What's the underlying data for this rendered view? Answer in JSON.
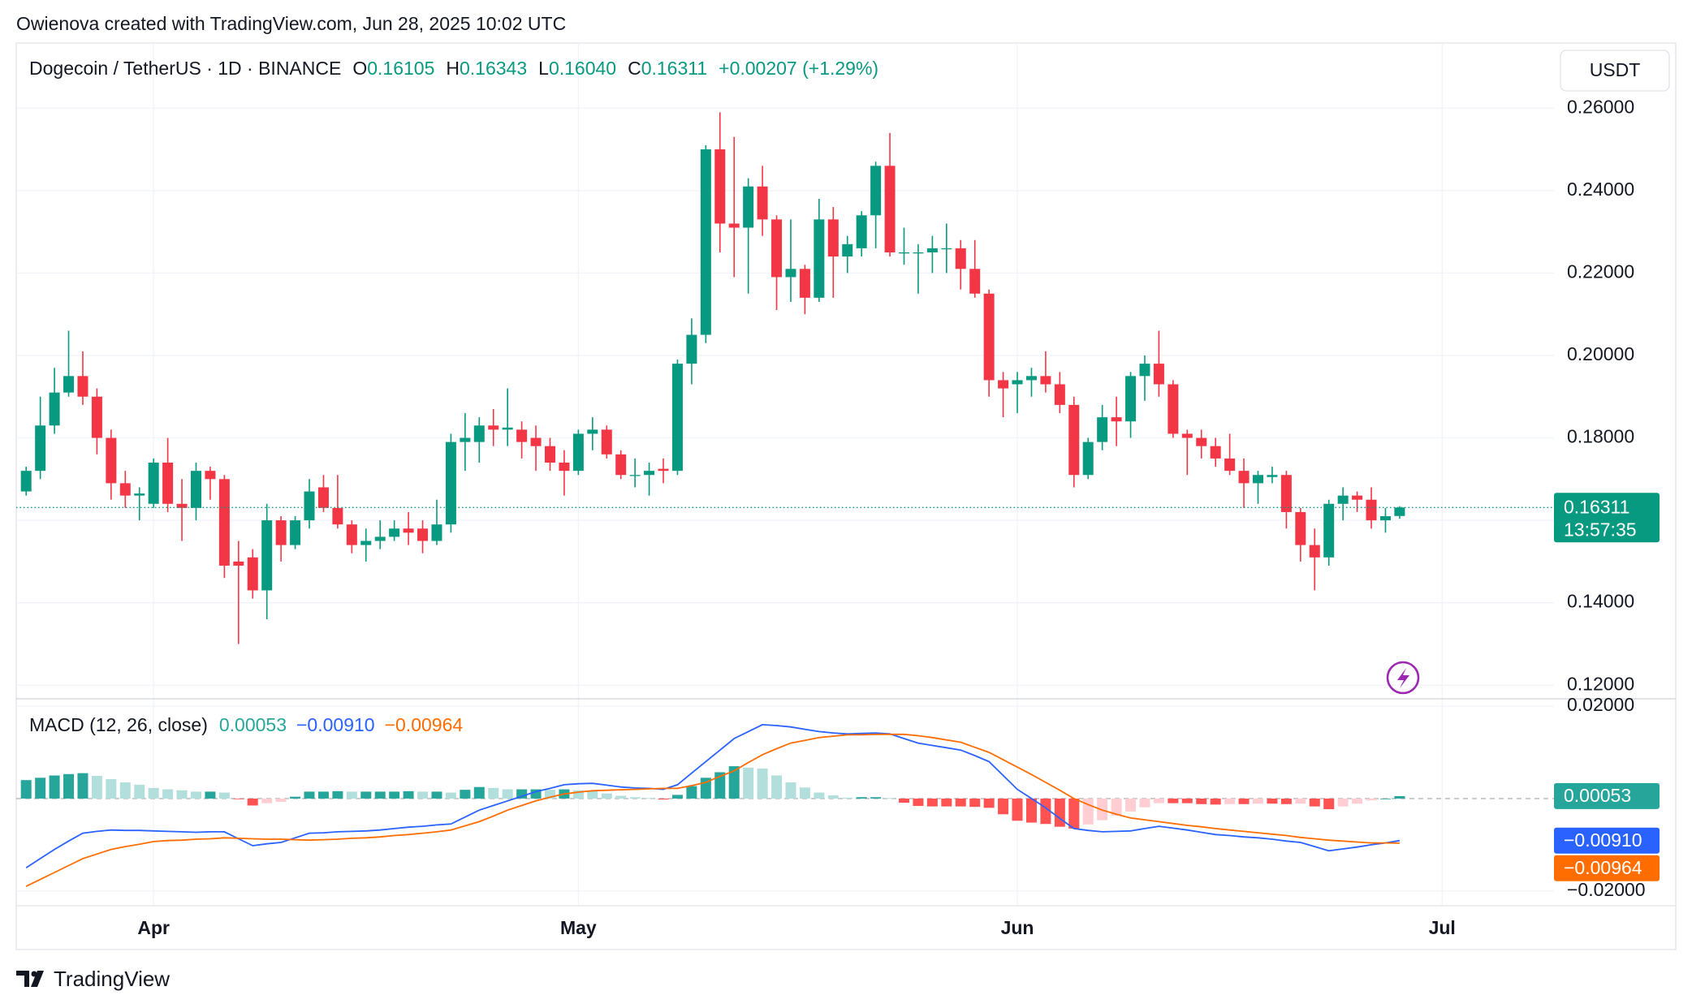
{
  "header": "Owienova created with TradingView.com, Jun 28, 2025 10:02 UTC",
  "footer": "TradingView",
  "chart_data": [
    {
      "type": "candlestick",
      "title": "Dogecoin / TetherUS · 1D · BINANCE",
      "currency": "USDT",
      "legend": {
        "letters": [
          "O",
          "H",
          "L",
          "C"
        ],
        "values": [
          "0.16105",
          "0.16343",
          "0.16040",
          "0.16311"
        ],
        "change": "+0.00207 (+1.29%)"
      },
      "countdown": "13:57:35",
      "up_color": "#089981",
      "down_color": "#f23645",
      "open": [
        0.167,
        0.172,
        0.183,
        0.191,
        0.195,
        0.19,
        0.18,
        0.169,
        0.166,
        0.164,
        0.174,
        0.164,
        0.163,
        0.172,
        0.17,
        0.15,
        0.151,
        0.143,
        0.16,
        0.154,
        0.16,
        0.168,
        0.163,
        0.159,
        0.154,
        0.155,
        0.156,
        0.158,
        0.158,
        0.155,
        0.159,
        0.179,
        0.179,
        0.183,
        0.182,
        0.182,
        0.18,
        0.178,
        0.174,
        0.172,
        0.181,
        0.182,
        0.176,
        0.171,
        0.171,
        0.1725,
        0.172,
        0.198,
        0.205,
        0.25,
        0.232,
        0.231,
        0.241,
        0.233,
        0.219,
        0.221,
        0.214,
        0.233,
        0.224,
        0.226,
        0.234,
        0.246,
        0.225,
        0.225,
        0.225,
        0.226,
        0.226,
        0.221,
        0.215,
        0.194,
        0.193,
        0.194,
        0.195,
        0.193,
        0.188,
        0.171,
        0.179,
        0.185,
        0.184,
        0.195,
        0.198,
        0.193,
        0.181,
        0.18,
        0.178,
        0.175,
        0.172,
        0.169,
        0.1705,
        0.171,
        0.162,
        0.154,
        0.151,
        0.164,
        0.166,
        0.165,
        0.16,
        0.16105
      ],
      "high": [
        0.173,
        0.19,
        0.197,
        0.206,
        0.201,
        0.192,
        0.182,
        0.172,
        0.168,
        0.175,
        0.18,
        0.17,
        0.174,
        0.173,
        0.171,
        0.155,
        0.153,
        0.164,
        0.161,
        0.161,
        0.17,
        0.171,
        0.171,
        0.16,
        0.158,
        0.16,
        0.16,
        0.162,
        0.16,
        0.165,
        0.181,
        0.186,
        0.185,
        0.187,
        0.192,
        0.184,
        0.183,
        0.18,
        0.177,
        0.182,
        0.185,
        0.183,
        0.177,
        0.175,
        0.174,
        0.175,
        0.199,
        0.209,
        0.251,
        0.259,
        0.253,
        0.243,
        0.246,
        0.234,
        0.233,
        0.222,
        0.238,
        0.236,
        0.229,
        0.235,
        0.247,
        0.254,
        0.231,
        0.227,
        0.229,
        0.232,
        0.228,
        0.228,
        0.216,
        0.196,
        0.196,
        0.197,
        0.201,
        0.196,
        0.19,
        0.18,
        0.188,
        0.19,
        0.196,
        0.2,
        0.206,
        0.194,
        0.182,
        0.182,
        0.18,
        0.181,
        0.175,
        0.172,
        0.173,
        0.172,
        0.163,
        0.158,
        0.165,
        0.168,
        0.167,
        0.168,
        0.163,
        0.16343
      ],
      "low": [
        0.166,
        0.17,
        0.181,
        0.19,
        0.188,
        0.176,
        0.165,
        0.163,
        0.16,
        0.163,
        0.162,
        0.155,
        0.16,
        0.165,
        0.146,
        0.13,
        0.141,
        0.136,
        0.15,
        0.153,
        0.158,
        0.162,
        0.158,
        0.152,
        0.15,
        0.153,
        0.155,
        0.154,
        0.152,
        0.154,
        0.157,
        0.172,
        0.174,
        0.178,
        0.178,
        0.175,
        0.172,
        0.172,
        0.166,
        0.171,
        0.177,
        0.175,
        0.17,
        0.168,
        0.166,
        0.169,
        0.171,
        0.193,
        0.203,
        0.225,
        0.219,
        0.215,
        0.229,
        0.211,
        0.213,
        0.21,
        0.213,
        0.214,
        0.22,
        0.224,
        0.226,
        0.224,
        0.222,
        0.215,
        0.22,
        0.22,
        0.216,
        0.214,
        0.19,
        0.185,
        0.186,
        0.19,
        0.191,
        0.186,
        0.168,
        0.17,
        0.177,
        0.178,
        0.18,
        0.189,
        0.19,
        0.18,
        0.171,
        0.175,
        0.173,
        0.171,
        0.163,
        0.164,
        0.169,
        0.158,
        0.15,
        0.143,
        0.149,
        0.16,
        0.162,
        0.158,
        0.157,
        0.1604
      ],
      "close": [
        0.172,
        0.183,
        0.191,
        0.195,
        0.19,
        0.18,
        0.169,
        0.166,
        0.1665,
        0.174,
        0.164,
        0.163,
        0.172,
        0.17,
        0.149,
        0.149,
        0.143,
        0.16,
        0.154,
        0.16,
        0.167,
        0.163,
        0.159,
        0.154,
        0.155,
        0.156,
        0.158,
        0.157,
        0.155,
        0.159,
        0.179,
        0.18,
        0.183,
        0.182,
        0.1825,
        0.179,
        0.178,
        0.174,
        0.172,
        0.181,
        0.182,
        0.176,
        0.171,
        0.171,
        0.172,
        0.172,
        0.198,
        0.205,
        0.25,
        0.232,
        0.231,
        0.241,
        0.233,
        0.219,
        0.221,
        0.214,
        0.233,
        0.224,
        0.227,
        0.234,
        0.246,
        0.225,
        0.225,
        0.225,
        0.226,
        0.226,
        0.221,
        0.215,
        0.194,
        0.192,
        0.194,
        0.195,
        0.193,
        0.188,
        0.171,
        0.179,
        0.185,
        0.184,
        0.195,
        0.198,
        0.193,
        0.181,
        0.18,
        0.178,
        0.175,
        0.172,
        0.169,
        0.171,
        0.171,
        0.162,
        0.154,
        0.151,
        0.164,
        0.166,
        0.165,
        0.16,
        0.161,
        0.16311
      ],
      "xlim": [
        -0.7,
        107.9
      ],
      "ylim": [
        0.1167,
        0.2758
      ],
      "yticks": [
        {
          "value": 0.12,
          "label": "0.12000"
        },
        {
          "value": 0.14,
          "label": "0.14000"
        },
        {
          "value": 0.16,
          "label": "0.16000"
        },
        {
          "value": 0.18,
          "label": "0.18000"
        },
        {
          "value": 0.2,
          "label": "0.20000"
        },
        {
          "value": 0.22,
          "label": "0.22000"
        },
        {
          "value": 0.24,
          "label": "0.24000"
        },
        {
          "value": 0.26,
          "label": "0.26000"
        }
      ],
      "grid": true
    },
    {
      "type": "macd",
      "title": "MACD (12, 26, close)",
      "histogram_colors": [
        "#26a69a",
        "#b2dfdb",
        "#ff5252",
        "#ffcdd2"
      ],
      "macd_color": "#2962ff",
      "signal_color": "#ff6d00",
      "histogram": [
        0.004,
        0.0045,
        0.005,
        0.0053,
        0.0055,
        0.0049,
        0.0042,
        0.0035,
        0.003,
        0.0023,
        0.002,
        0.0018,
        0.0015,
        0.0015,
        0.0013,
        -0.0001,
        -0.0015,
        -0.001,
        -0.0007,
        0.0004,
        0.0015,
        0.0015,
        0.0016,
        0.0015,
        0.0015,
        0.0015,
        0.0015,
        0.0016,
        0.0015,
        0.0015,
        0.0013,
        0.0019,
        0.0025,
        0.0023,
        0.002,
        0.002,
        0.002,
        0.0019,
        0.002,
        0.0018,
        0.0016,
        0.0011,
        0.0006,
        0.0003,
        0.0001,
        -0.0002,
        0.0008,
        0.0027,
        0.0045,
        0.0057,
        0.007,
        0.0067,
        0.0065,
        0.005,
        0.0035,
        0.0024,
        0.0013,
        0.0007,
        0.0002,
        0.0003,
        0.0003,
        0.0001,
        -0.0009,
        -0.0016,
        -0.0017,
        -0.0017,
        -0.0017,
        -0.0018,
        -0.002,
        -0.0034,
        -0.0048,
        -0.0052,
        -0.0055,
        -0.0061,
        -0.0065,
        -0.0056,
        -0.0047,
        -0.0037,
        -0.0028,
        -0.0019,
        -0.001,
        -0.001,
        -0.001,
        -0.0012,
        -0.0013,
        -0.0012,
        -0.0012,
        -0.0011,
        -0.0011,
        -0.0012,
        -0.0011,
        -0.0017,
        -0.0023,
        -0.0017,
        -0.0011,
        -0.0004,
        0.0,
        0.00053
      ],
      "macd": [
        -0.015,
        -0.013,
        -0.011,
        -0.0092,
        -0.0075,
        -0.0071,
        -0.0068,
        -0.0069,
        -0.0069,
        -0.007,
        -0.0071,
        -0.0072,
        -0.0073,
        -0.0072,
        -0.0072,
        -0.0087,
        -0.0102,
        -0.0098,
        -0.0095,
        -0.0085,
        -0.0075,
        -0.0074,
        -0.0072,
        -0.0071,
        -0.007,
        -0.0068,
        -0.0065,
        -0.0062,
        -0.006,
        -0.0057,
        -0.0055,
        -0.004,
        -0.0025,
        -0.0015,
        -0.0005,
        0.0005,
        0.0015,
        0.0022,
        0.003,
        0.0032,
        0.0033,
        0.0029,
        0.0025,
        0.0023,
        0.0022,
        0.002,
        0.003,
        0.0055,
        0.008,
        0.0105,
        0.013,
        0.0145,
        0.016,
        0.0158,
        0.0155,
        0.015,
        0.0145,
        0.0142,
        0.014,
        0.0141,
        0.0142,
        0.014,
        0.013,
        0.012,
        0.0115,
        0.011,
        0.0105,
        0.0093,
        0.008,
        0.005,
        0.002,
        0.0,
        -0.002,
        -0.0043,
        -0.0065,
        -0.0069,
        -0.0072,
        -0.0071,
        -0.007,
        -0.0065,
        -0.006,
        -0.0064,
        -0.0068,
        -0.0073,
        -0.0078,
        -0.008,
        -0.0083,
        -0.0085,
        -0.0088,
        -0.0092,
        -0.0095,
        -0.0104,
        -0.0113,
        -0.0109,
        -0.0105,
        -0.01,
        -0.0096,
        -0.0091
      ],
      "signal": [
        -0.019,
        -0.0175,
        -0.016,
        -0.0145,
        -0.013,
        -0.012,
        -0.011,
        -0.0104,
        -0.0099,
        -0.0093,
        -0.0091,
        -0.009,
        -0.0088,
        -0.0087,
        -0.0085,
        -0.0086,
        -0.0087,
        -0.0088,
        -0.0088,
        -0.0089,
        -0.009,
        -0.0089,
        -0.0088,
        -0.0086,
        -0.0085,
        -0.0083,
        -0.008,
        -0.0078,
        -0.0075,
        -0.0072,
        -0.0068,
        -0.0059,
        -0.005,
        -0.0038,
        -0.0025,
        -0.0015,
        -0.0005,
        0.0003,
        0.001,
        0.0014,
        0.0017,
        0.0018,
        0.0019,
        0.002,
        0.0021,
        0.0022,
        0.0022,
        0.0028,
        0.0035,
        0.0048,
        0.006,
        0.0078,
        0.0095,
        0.0108,
        0.012,
        0.0126,
        0.0132,
        0.0135,
        0.0138,
        0.0138,
        0.0139,
        0.0139,
        0.0139,
        0.0136,
        0.0132,
        0.0127,
        0.0122,
        0.0111,
        0.01,
        0.0084,
        0.0068,
        0.0052,
        0.0035,
        0.0018,
        0.0,
        -0.0013,
        -0.0025,
        -0.0034,
        -0.0042,
        -0.0046,
        -0.005,
        -0.0054,
        -0.0058,
        -0.0061,
        -0.0065,
        -0.0068,
        -0.0071,
        -0.0074,
        -0.0077,
        -0.008,
        -0.0084,
        -0.0087,
        -0.009,
        -0.0092,
        -0.0094,
        -0.0096,
        -0.0096,
        -0.00964
      ],
      "last_labels": {
        "histogram": "0.00053",
        "macd": "−0.00910",
        "signal": "−0.00964"
      },
      "xlim": [
        -0.7,
        107.9
      ],
      "ylim": [
        -0.0232,
        0.0216
      ],
      "yticks": [
        {
          "value": -0.02,
          "label": "−0.02000"
        },
        {
          "value": 0.02,
          "label": "0.02000"
        }
      ],
      "xticks": [
        {
          "value": 9,
          "label": "Apr"
        },
        {
          "value": 39,
          "label": "May"
        },
        {
          "value": 70,
          "label": "Jun"
        },
        {
          "value": 100,
          "label": "Jul"
        }
      ],
      "grid": true
    }
  ]
}
